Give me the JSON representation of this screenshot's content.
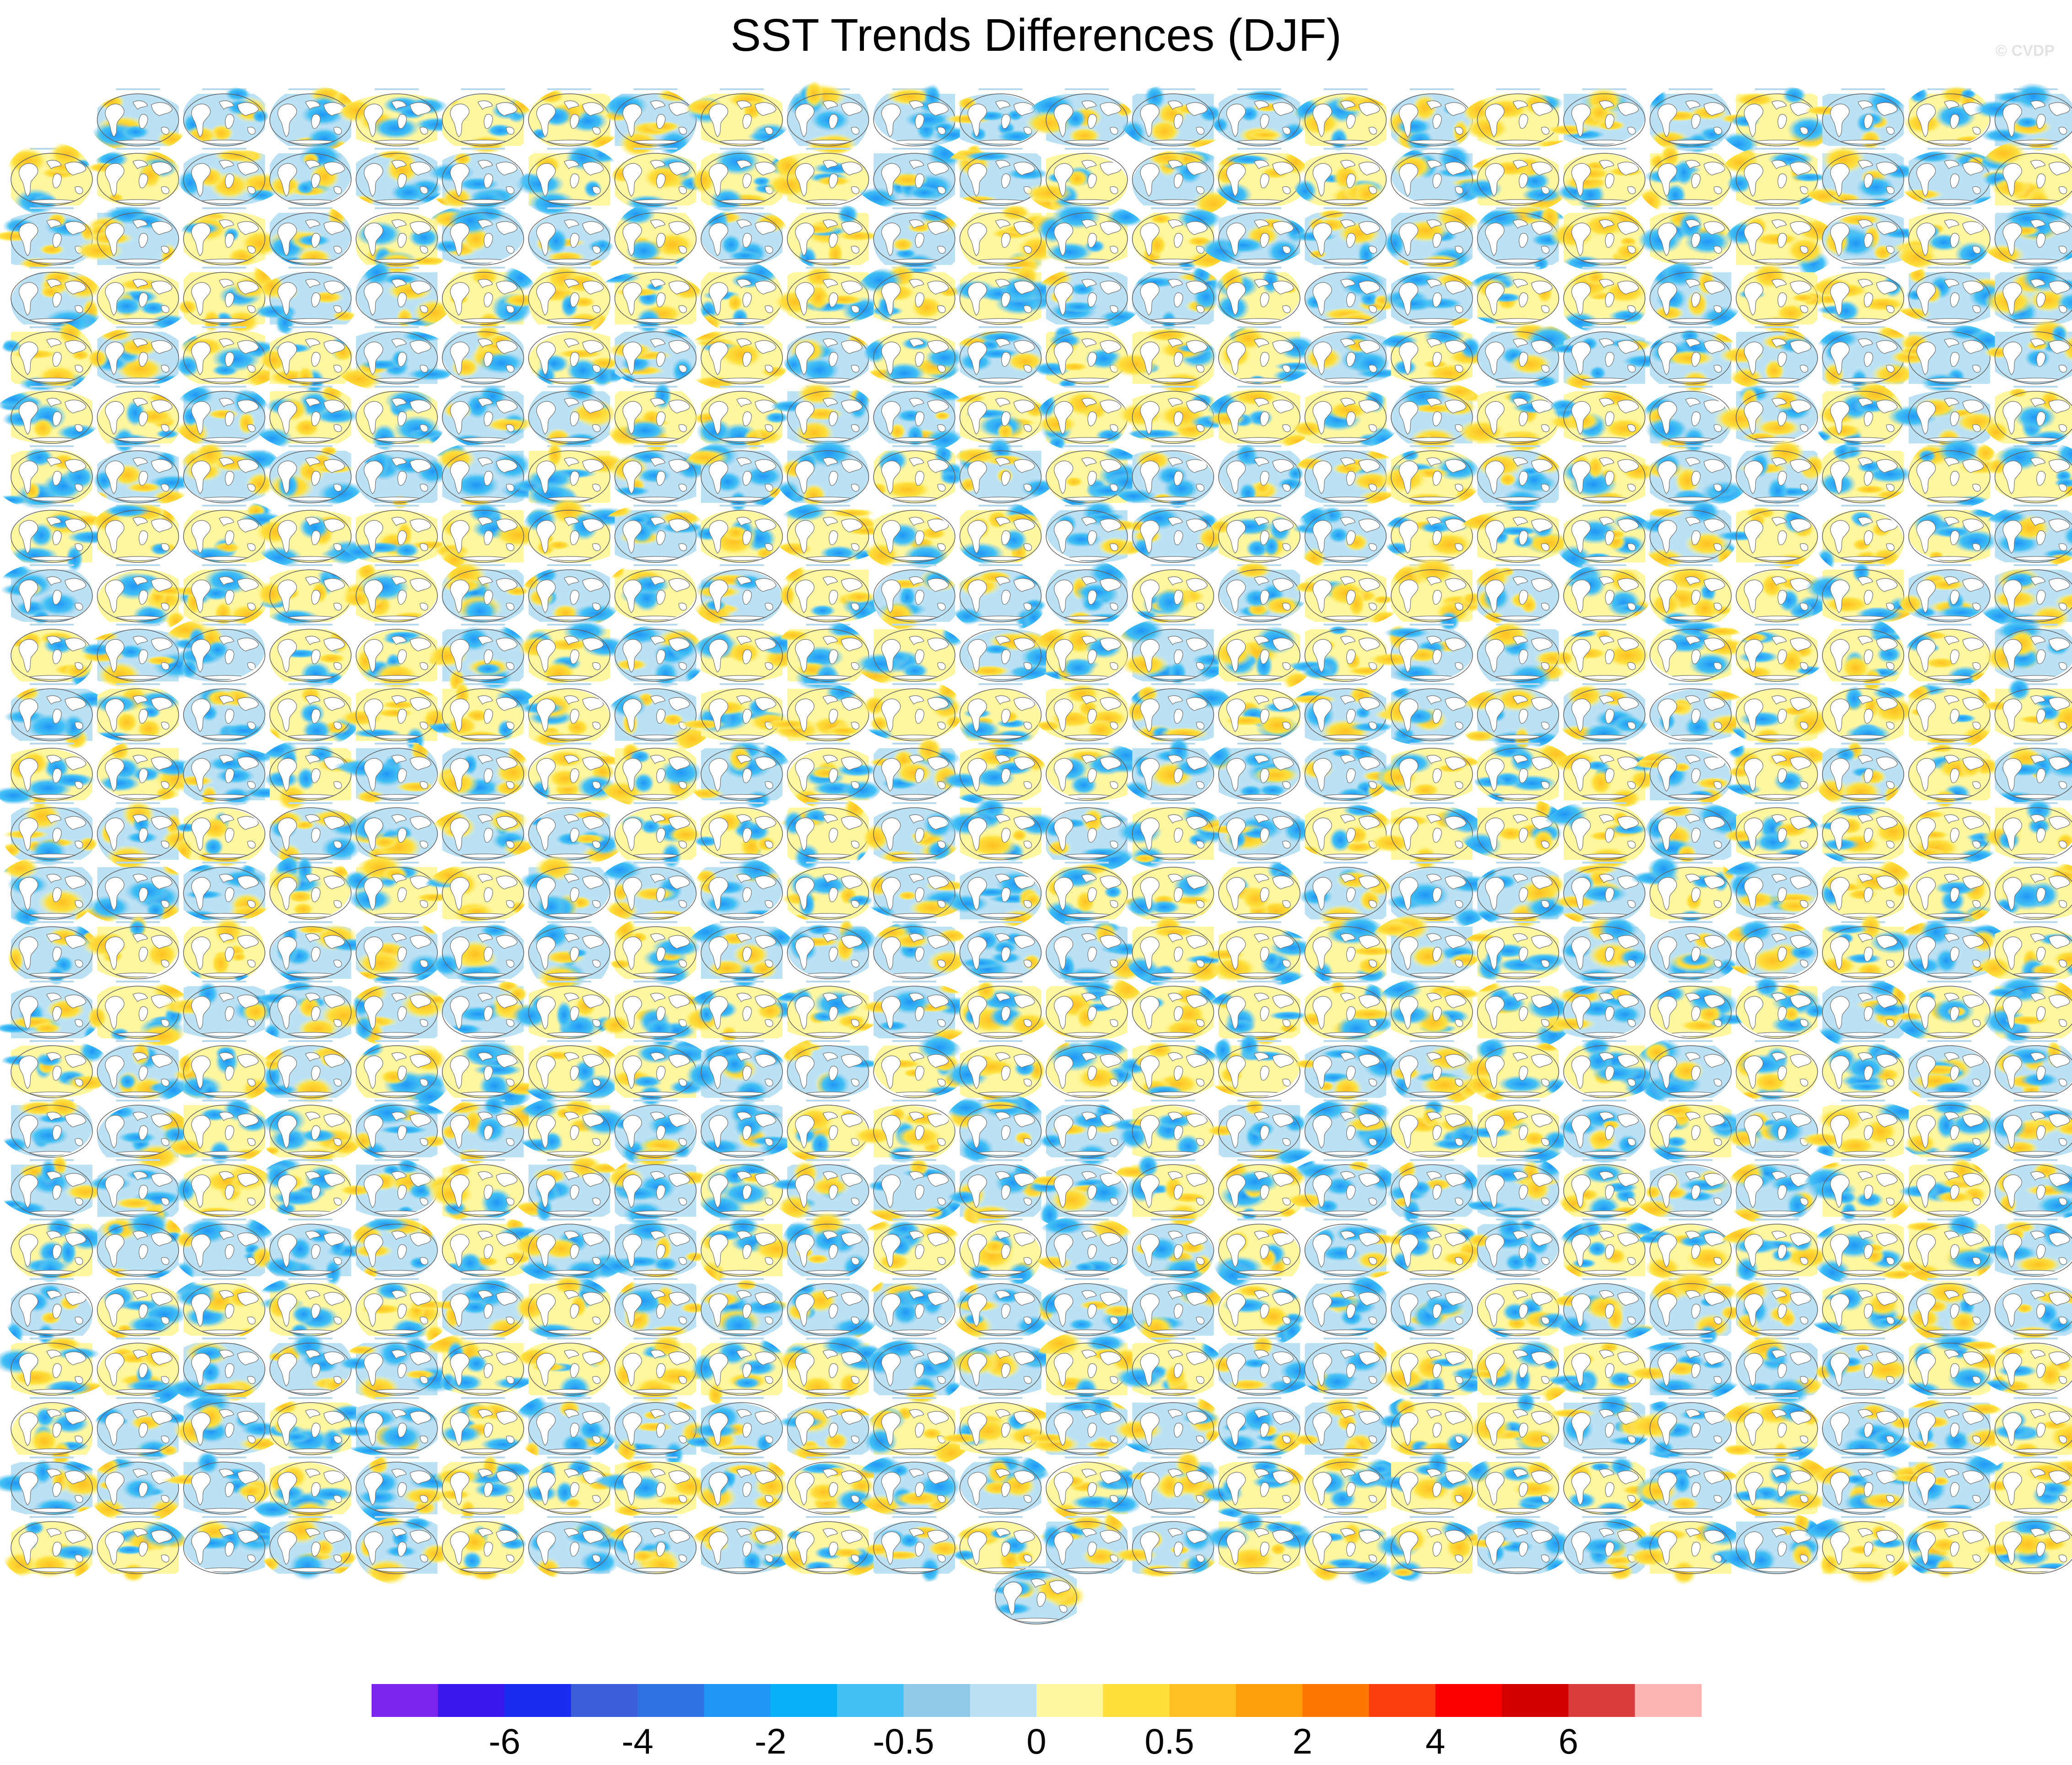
{
  "title": "SST Trends Differences (DJF)",
  "watermark": "© CVDP",
  "chart_data": {
    "type": "heatmap",
    "title": "SST Trends Differences (DJF)",
    "layout": {
      "grid_rows": 25,
      "grid_cols": 24,
      "first_row_panels": 23,
      "extra_bottom_panels": 1,
      "total_panels": 600
    },
    "colorbar": {
      "colors": [
        "#7b24ec",
        "#3817ee",
        "#1b2cf1",
        "#3c5ed8",
        "#2f73e2",
        "#2096f5",
        "#08b1f7",
        "#40c0f5",
        "#8ecae8",
        "#bbe1f5",
        "#fef7a0",
        "#fedf3c",
        "#fec022",
        "#fd9f0a",
        "#fd7803",
        "#fa3f0d",
        "#fa0000",
        "#d40000",
        "#d83c3c",
        "#ffb4b4"
      ],
      "tick_labels": [
        "-6",
        "-4",
        "-2",
        "-0.5",
        "0",
        "0.5",
        "2",
        "4",
        "6"
      ],
      "tick_boundaries": [
        2,
        4,
        6,
        8,
        10,
        12,
        14,
        16,
        18
      ]
    }
  }
}
